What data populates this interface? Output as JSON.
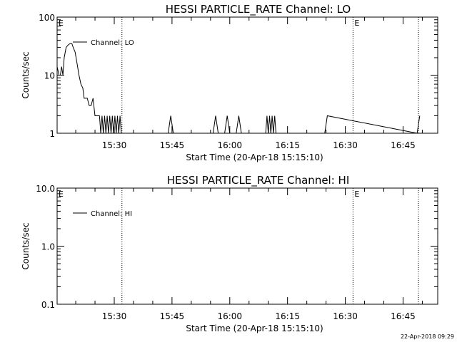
{
  "footer": {
    "timestamp": "22-Apr-2018 09:29"
  },
  "chart_data": [
    {
      "type": "line",
      "title": "HESSI PARTICLE_RATE Channel: LO",
      "xlabel": "Start Time (20-Apr-18 15:15:10)",
      "ylabel": "Counts/sec",
      "yscale": "log",
      "ylim": [
        1,
        100
      ],
      "yticks": [
        1,
        10,
        100
      ],
      "ytick_labels": [
        "1",
        "10",
        "100"
      ],
      "xlim": [
        "15:15:10",
        "16:54:00"
      ],
      "xticks": [
        "15:30",
        "15:45",
        "16:00",
        "16:15",
        "16:30",
        "16:45"
      ],
      "event_markers": [
        {
          "time": "15:15:10",
          "label": "E"
        },
        {
          "time": "15:32:00",
          "label": ""
        },
        {
          "time": "16:32:00",
          "label": "E"
        },
        {
          "time": "16:49:00",
          "label": ""
        }
      ],
      "series": [
        {
          "name": "Channel: LO",
          "x": [
            "15:15:10",
            "15:15:40",
            "15:16:00",
            "15:16:20",
            "15:16:40",
            "15:17:00",
            "15:17:30",
            "15:18:00",
            "15:18:30",
            "15:19:00",
            "15:19:20",
            "15:19:50",
            "15:20:20",
            "15:20:50",
            "15:21:20",
            "15:21:50",
            "15:22:10",
            "15:22:40",
            "15:23:00",
            "15:23:30",
            "15:24:00",
            "15:24:30",
            "15:25:00",
            "15:25:20",
            "15:25:50",
            "15:26:10",
            "15:26:30",
            "15:26:50",
            "15:27:10",
            "15:27:30",
            "15:27:50",
            "15:28:10",
            "15:28:30",
            "15:28:50",
            "15:29:10",
            "15:29:30",
            "15:29:50",
            "15:30:10",
            "15:30:30",
            "15:30:50",
            "15:31:10",
            "15:31:30",
            "15:31:50",
            "15:32:10",
            "15:44:00",
            "15:44:40",
            "15:45:20",
            "15:55:40",
            "15:56:20",
            "15:57:00",
            "15:58:40",
            "15:59:20",
            "16:00:00",
            "16:01:40",
            "16:02:20",
            "16:03:00",
            "16:09:20",
            "16:09:40",
            "16:10:00",
            "16:10:20",
            "16:10:40",
            "16:11:00",
            "16:11:20",
            "16:11:40",
            "16:12:00",
            "16:24:40",
            "16:25:20",
            "16:48:40",
            "16:49:20"
          ],
          "y": [
            14,
            10,
            10,
            14,
            10,
            20,
            30,
            33,
            35,
            35,
            30,
            25,
            16,
            10,
            7,
            6,
            4,
            4,
            4,
            3,
            3,
            4,
            2,
            2,
            2,
            2,
            1,
            2,
            1,
            2,
            1,
            2,
            1,
            2,
            1,
            2,
            1,
            2,
            1,
            2,
            1,
            2,
            1,
            1,
            1,
            2,
            1,
            1,
            2,
            1,
            1,
            2,
            1,
            1,
            2,
            1,
            1,
            2,
            1,
            2,
            1,
            2,
            1,
            2,
            1,
            1,
            2,
            1,
            2
          ]
        }
      ]
    },
    {
      "type": "line",
      "title": "HESSI PARTICLE_RATE Channel: HI",
      "xlabel": "Start Time (20-Apr-18 15:15:10)",
      "ylabel": "Counts/sec",
      "yscale": "log",
      "ylim": [
        0.1,
        10
      ],
      "yticks": [
        0.1,
        1,
        10
      ],
      "ytick_labels": [
        "0.1",
        "1.0",
        "10.0"
      ],
      "xlim": [
        "15:15:10",
        "16:54:00"
      ],
      "xticks": [
        "15:30",
        "15:45",
        "16:00",
        "16:15",
        "16:30",
        "16:45"
      ],
      "event_markers": [
        {
          "time": "15:15:10",
          "label": "E"
        },
        {
          "time": "15:32:00",
          "label": ""
        },
        {
          "time": "16:32:00",
          "label": "E"
        },
        {
          "time": "16:49:00",
          "label": ""
        }
      ],
      "series": [
        {
          "name": "Channel: HI",
          "x": [],
          "y": []
        }
      ]
    }
  ]
}
